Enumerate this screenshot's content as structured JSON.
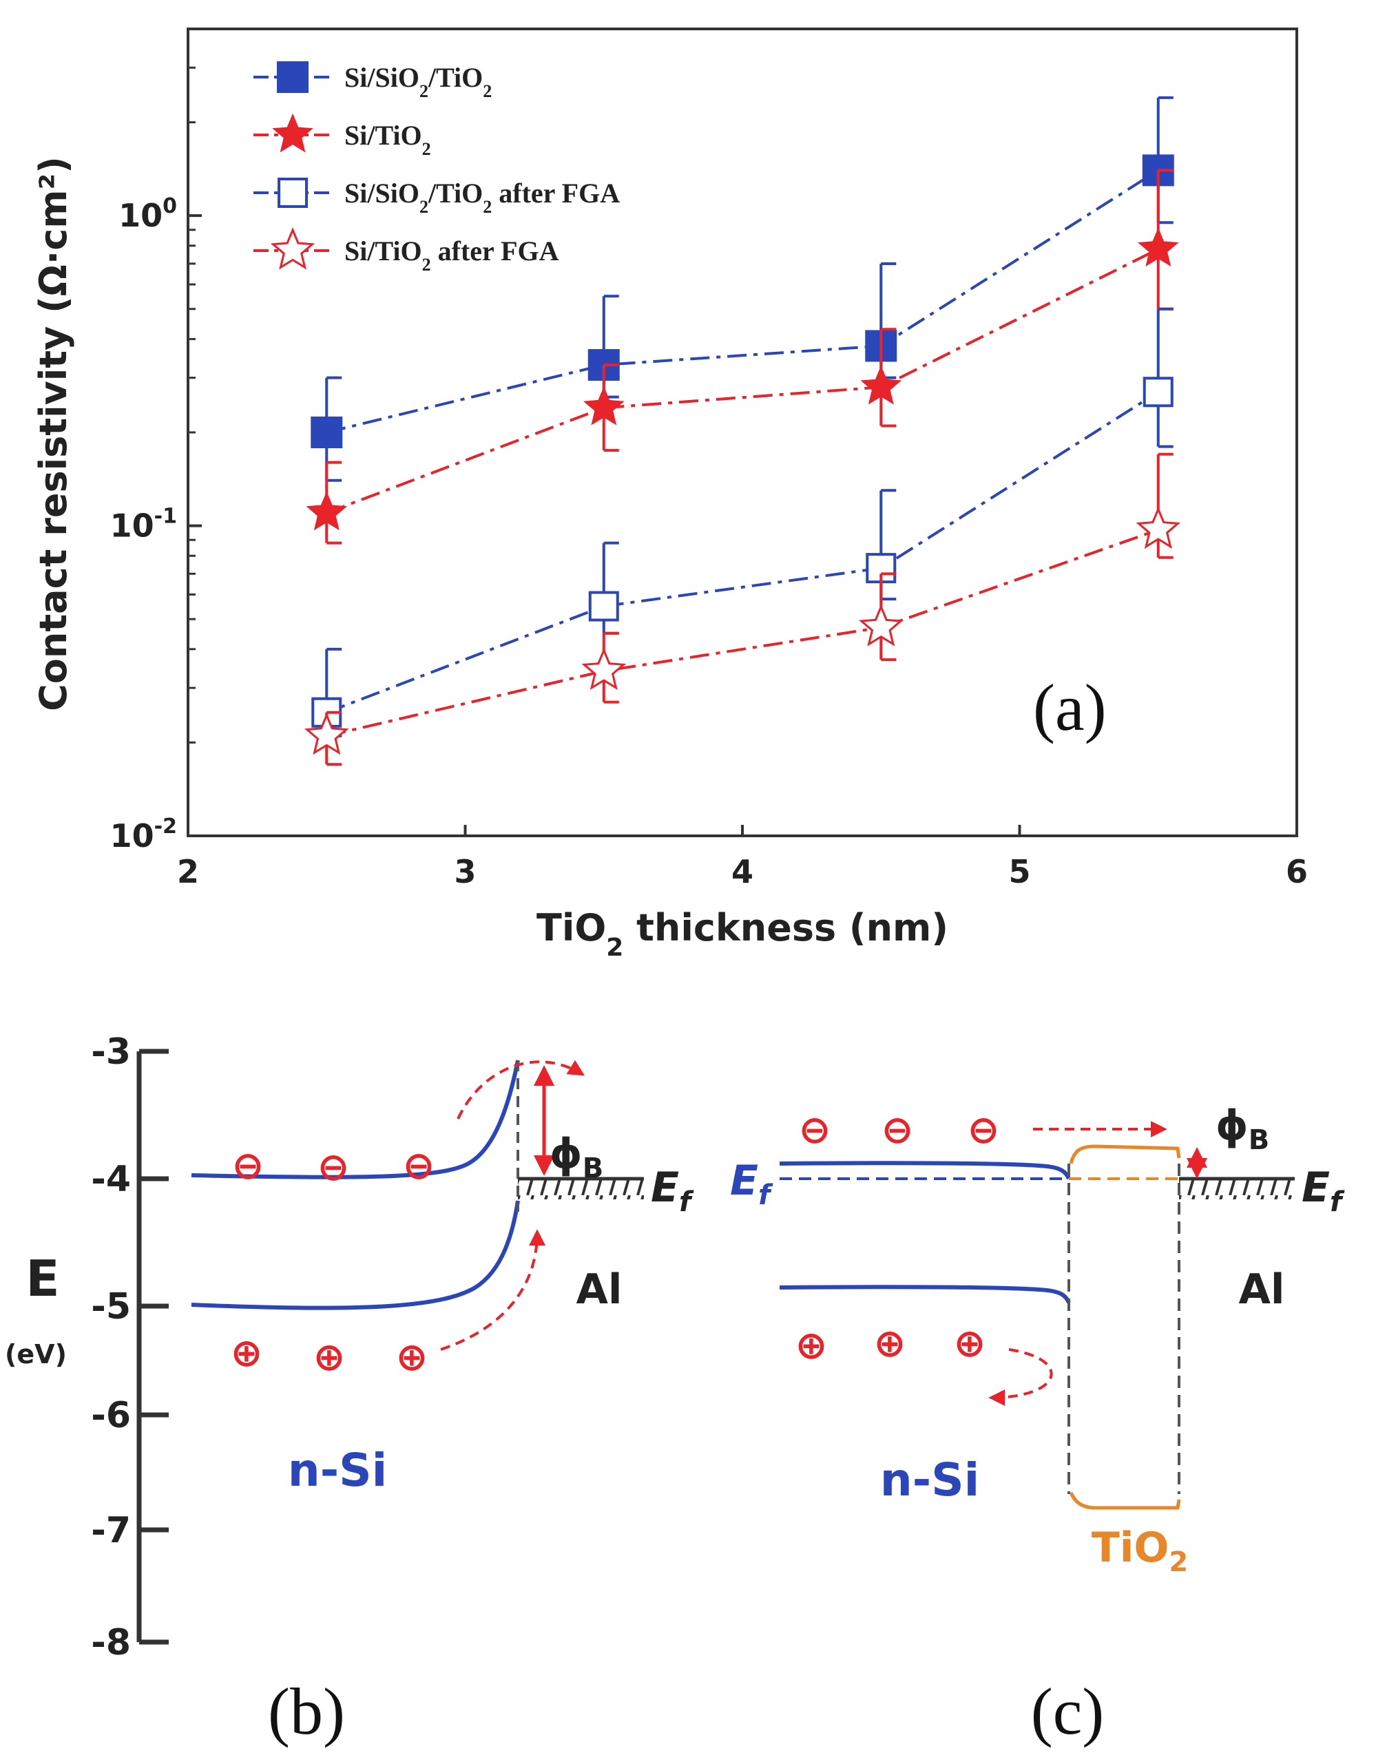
{
  "chart_data": {
    "type": "line",
    "panel_label": "(a)",
    "xlabel": "TiO",
    "xlabel_sub": "2",
    "xlabel_tail": " thickness (nm)",
    "ylabel": "Contact resistivity (Ω·cm²)",
    "xlim": [
      2,
      6
    ],
    "ylim": [
      0.01,
      4
    ],
    "yscale": "log",
    "x_ticks": [
      "2",
      "3",
      "4",
      "5",
      "6"
    ],
    "y_ticks": [
      {
        "base": "10",
        "exp": "0",
        "value": 1
      },
      {
        "base": "10",
        "exp": "-1",
        "value": 0.1
      },
      {
        "base": "10",
        "exp": "-2",
        "value": 0.01
      }
    ],
    "x": [
      2.5,
      3.5,
      4.5,
      5.5
    ],
    "legend_position": "top-left",
    "series": [
      {
        "name": "Si/SiO2/TiO2",
        "label_parts": [
          "Si/SiO",
          "2",
          "/TiO",
          "2",
          ""
        ],
        "color": "#2b46b8",
        "marker": "square-filled",
        "values": [
          0.2,
          0.33,
          0.38,
          1.4
        ],
        "err_upper": [
          0.3,
          0.55,
          0.7,
          2.4
        ],
        "err_lower": [
          0.14,
          0.26,
          0.3,
          0.95
        ]
      },
      {
        "name": "Si/TiO2",
        "label_parts": [
          "Si/TiO",
          "2",
          ""
        ],
        "color": "#e8232a",
        "marker": "star-filled",
        "values": [
          0.11,
          0.24,
          0.28,
          0.78
        ],
        "err_upper": [
          0.16,
          0.33,
          0.43,
          1.4
        ],
        "err_lower": [
          0.088,
          0.175,
          0.21,
          0.5
        ]
      },
      {
        "name": "Si/SiO2/TiO2 after FGA",
        "label_parts": [
          "Si/SiO",
          "2",
          "/TiO",
          "2",
          " after FGA"
        ],
        "color": "#2b46b8",
        "marker": "square-open",
        "values": [
          0.025,
          0.055,
          0.073,
          0.27
        ],
        "err_upper": [
          0.04,
          0.088,
          0.13,
          0.5
        ],
        "err_lower": [
          0.021,
          0.045,
          0.058,
          0.18
        ]
      },
      {
        "name": "Si/TiO2 after FGA",
        "label_parts": [
          "Si/TiO",
          "2",
          " after FGA"
        ],
        "color": "#e8232a",
        "marker": "star-open",
        "values": [
          0.021,
          0.034,
          0.047,
          0.097
        ],
        "err_upper": [
          0.025,
          0.045,
          0.07,
          0.17
        ],
        "err_lower": [
          0.017,
          0.027,
          0.037,
          0.079
        ]
      }
    ]
  },
  "band_diagram": {
    "y_axis_label": "E",
    "y_axis_unit": "(eV)",
    "y_ticks": [
      "-3",
      "-4",
      "-5",
      "-6",
      "-7",
      "-8"
    ],
    "panel_b": {
      "label": "(b)",
      "semiconductor": "n-Si",
      "metal": "Al",
      "barrier": "ϕ",
      "barrier_sub": "B",
      "fermi": "E",
      "fermi_sub": "f"
    },
    "panel_c": {
      "label": "(c)",
      "semiconductor": "n-Si",
      "metal": "Al",
      "interlayer": "TiO",
      "interlayer_sub": "2",
      "barrier": "ϕ",
      "barrier_sub": "B",
      "fermi": "E",
      "fermi_sub": "f",
      "fermi_left": "E",
      "fermi_left_sub": "f"
    },
    "electron_symbol": "⊖",
    "hole_symbol": "⊕",
    "colors": {
      "blue": "#2b46b8",
      "red": "#e8232a",
      "orange": "#e8862a",
      "dark": "#333333"
    }
  }
}
